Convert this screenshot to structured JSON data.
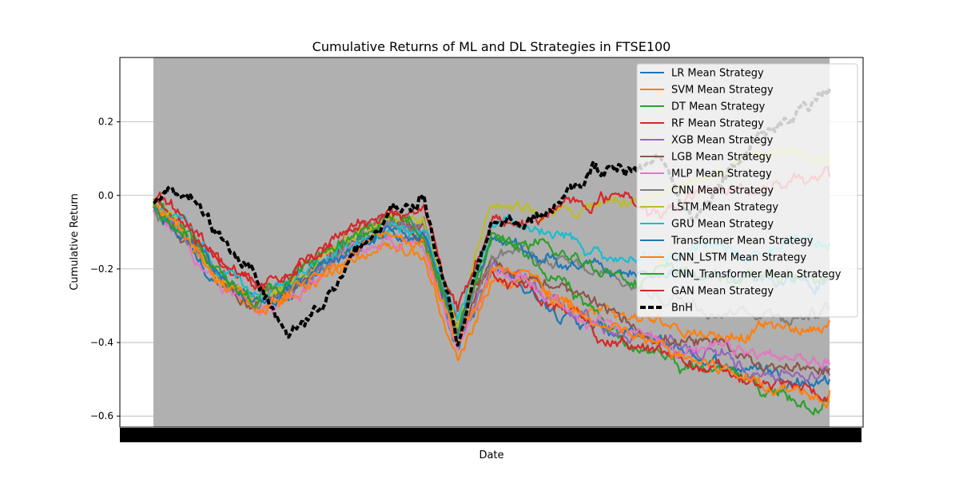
{
  "chart_data": {
    "type": "line",
    "title": "Cumulative Returns of ML and DL Strategies in FTSE100",
    "xlabel": "Date",
    "ylabel": "Cumulative Return",
    "ylim": [
      -0.63,
      0.375
    ],
    "yticks": [
      -0.6,
      -0.4,
      -0.2,
      0.0,
      0.2
    ],
    "ytick_labels": [
      "−0.6",
      "−0.4",
      "−0.2",
      "0.0",
      "0.2"
    ],
    "grid": true,
    "legend_position": "upper-right",
    "x_index_range": [
      0,
      100
    ],
    "series": [
      {
        "name": "LR Mean Strategy",
        "color": "#1f77b4",
        "dash": "solid",
        "final": -0.5,
        "values": [
          -0.03,
          -0.12,
          -0.24,
          -0.31,
          -0.27,
          -0.2,
          -0.15,
          -0.1,
          -0.12,
          -0.4,
          -0.2,
          -0.25,
          -0.3,
          -0.36,
          -0.38,
          -0.41,
          -0.43,
          -0.46,
          -0.47,
          -0.49,
          -0.5
        ]
      },
      {
        "name": "SVM Mean Strategy",
        "color": "#ff7f0e",
        "dash": "solid",
        "final": -0.34,
        "values": [
          -0.03,
          -0.12,
          -0.24,
          -0.32,
          -0.29,
          -0.23,
          -0.17,
          -0.13,
          -0.16,
          -0.45,
          -0.22,
          -0.23,
          -0.27,
          -0.3,
          -0.33,
          -0.35,
          -0.36,
          -0.38,
          -0.35,
          -0.37,
          -0.34
        ]
      },
      {
        "name": "DT Mean Strategy",
        "color": "#2ca02c",
        "dash": "solid",
        "final": -0.56,
        "values": [
          -0.02,
          -0.1,
          -0.22,
          -0.29,
          -0.25,
          -0.18,
          -0.13,
          -0.08,
          -0.1,
          -0.38,
          -0.14,
          -0.17,
          -0.24,
          -0.33,
          -0.38,
          -0.44,
          -0.47,
          -0.5,
          -0.54,
          -0.55,
          -0.56
        ]
      },
      {
        "name": "RF Mean Strategy",
        "color": "#d62728",
        "dash": "solid",
        "final": -0.54,
        "values": [
          -0.02,
          -0.09,
          -0.2,
          -0.26,
          -0.22,
          -0.16,
          -0.11,
          -0.06,
          -0.09,
          -0.36,
          -0.2,
          -0.25,
          -0.31,
          -0.37,
          -0.4,
          -0.44,
          -0.46,
          -0.49,
          -0.52,
          -0.53,
          -0.54
        ]
      },
      {
        "name": "XGB Mean Strategy",
        "color": "#9467bd",
        "dash": "solid",
        "final": -0.49,
        "values": [
          -0.03,
          -0.11,
          -0.23,
          -0.3,
          -0.26,
          -0.19,
          -0.14,
          -0.09,
          -0.11,
          -0.39,
          -0.19,
          -0.23,
          -0.28,
          -0.34,
          -0.37,
          -0.4,
          -0.43,
          -0.45,
          -0.47,
          -0.48,
          -0.49
        ]
      },
      {
        "name": "LGB Mean Strategy",
        "color": "#8c564b",
        "dash": "solid",
        "final": -0.47,
        "values": [
          -0.03,
          -0.11,
          -0.22,
          -0.29,
          -0.25,
          -0.18,
          -0.13,
          -0.08,
          -0.1,
          -0.38,
          -0.17,
          -0.21,
          -0.26,
          -0.31,
          -0.35,
          -0.38,
          -0.41,
          -0.43,
          -0.45,
          -0.46,
          -0.47
        ]
      },
      {
        "name": "MLP Mean Strategy",
        "color": "#e377c2",
        "dash": "solid",
        "final": -0.46,
        "values": [
          -0.04,
          -0.13,
          -0.25,
          -0.32,
          -0.28,
          -0.21,
          -0.15,
          -0.11,
          -0.13,
          -0.41,
          -0.2,
          -0.24,
          -0.29,
          -0.35,
          -0.37,
          -0.39,
          -0.42,
          -0.43,
          -0.44,
          -0.45,
          -0.46
        ]
      },
      {
        "name": "CNN Mean Strategy",
        "color": "#7f7f7f",
        "dash": "solid",
        "final": -0.31,
        "values": [
          -0.03,
          -0.11,
          -0.22,
          -0.29,
          -0.25,
          -0.18,
          -0.13,
          -0.08,
          -0.1,
          -0.37,
          -0.14,
          -0.15,
          -0.19,
          -0.22,
          -0.25,
          -0.27,
          -0.29,
          -0.3,
          -0.31,
          -0.32,
          -0.31
        ]
      },
      {
        "name": "LSTM Mean Strategy",
        "color": "#bcbd22",
        "dash": "solid",
        "final": 0.08,
        "values": [
          -0.02,
          -0.1,
          -0.21,
          -0.27,
          -0.23,
          -0.16,
          -0.1,
          -0.05,
          -0.07,
          -0.34,
          0.0,
          -0.02,
          -0.05,
          -0.03,
          -0.02,
          0.0,
          0.04,
          0.06,
          0.09,
          0.12,
          0.08
        ]
      },
      {
        "name": "GRU Mean Strategy",
        "color": "#17becf",
        "dash": "solid",
        "final": -0.13,
        "values": [
          -0.03,
          -0.1,
          -0.22,
          -0.28,
          -0.24,
          -0.17,
          -0.12,
          -0.07,
          -0.09,
          -0.36,
          -0.1,
          -0.1,
          -0.13,
          -0.15,
          -0.18,
          -0.17,
          -0.16,
          -0.15,
          -0.14,
          -0.12,
          -0.13
        ]
      },
      {
        "name": "Transformer Mean Strategy",
        "color": "#1f77b4",
        "dash": "solid",
        "final": -0.23,
        "values": [
          -0.03,
          -0.11,
          -0.23,
          -0.3,
          -0.26,
          -0.19,
          -0.14,
          -0.09,
          -0.11,
          -0.39,
          -0.13,
          -0.15,
          -0.18,
          -0.2,
          -0.22,
          -0.21,
          -0.22,
          -0.22,
          -0.23,
          -0.22,
          -0.23
        ]
      },
      {
        "name": "CNN_LSTM Mean Strategy",
        "color": "#ff7f0e",
        "dash": "solid",
        "final": -0.53,
        "values": [
          -0.03,
          -0.12,
          -0.24,
          -0.31,
          -0.27,
          -0.2,
          -0.15,
          -0.1,
          -0.12,
          -0.4,
          -0.21,
          -0.24,
          -0.29,
          -0.35,
          -0.38,
          -0.42,
          -0.45,
          -0.48,
          -0.51,
          -0.52,
          -0.53
        ]
      },
      {
        "name": "CNN_Transformer Mean Strategy",
        "color": "#2ca02c",
        "dash": "solid",
        "final": -0.22,
        "values": [
          -0.02,
          -0.1,
          -0.22,
          -0.28,
          -0.24,
          -0.17,
          -0.12,
          -0.07,
          -0.09,
          -0.36,
          -0.12,
          -0.14,
          -0.17,
          -0.19,
          -0.21,
          -0.21,
          -0.22,
          -0.22,
          -0.23,
          -0.22,
          -0.22
        ]
      },
      {
        "name": "GAN Mean Strategy",
        "color": "#d62728",
        "dash": "solid",
        "final": 0.05,
        "values": [
          -0.01,
          -0.08,
          -0.19,
          -0.23,
          -0.2,
          -0.14,
          -0.09,
          -0.04,
          -0.06,
          -0.32,
          -0.06,
          -0.08,
          -0.03,
          -0.02,
          0.01,
          -0.06,
          0.0,
          0.01,
          0.03,
          0.06,
          0.05
        ]
      },
      {
        "name": "BnH",
        "color": "#000000",
        "dash": "dashed",
        "final": 0.29,
        "values": [
          -0.02,
          0.01,
          -0.12,
          -0.2,
          -0.38,
          -0.28,
          -0.17,
          -0.05,
          0.01,
          -0.38,
          -0.06,
          -0.1,
          -0.02,
          0.07,
          0.06,
          0.11,
          -0.08,
          0.07,
          0.15,
          0.21,
          0.29
        ]
      }
    ]
  }
}
